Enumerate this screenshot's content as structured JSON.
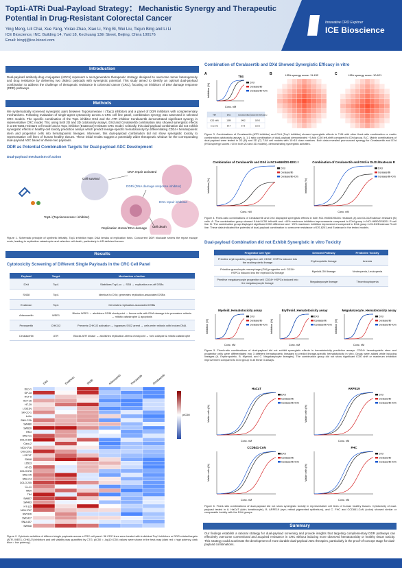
{
  "header": {
    "title": "Top1i-ATRi Dual-Payload Strategy： Mechanistic Synergy and Therapeutic Potential in Drug-Resistant Colorectal Cancer",
    "authors": "Ying Meng, Lili Chai, Xue Yang, Yixiao Zhao, Xiao Li, Ying Bi, Wei Liu, Tiejun Bing and Li Li",
    "affiliation": "ICE Bioscience, INC. Building 14, Yard 18, Kechuang 13th Street, Beijing, China 100176",
    "email": "Email: bingtj@ice-biosci.com",
    "logo_tag": "Innovative CRO Explorer",
    "logo_name": "ICE Bioscience"
  },
  "introduction": {
    "heading": "Introduction",
    "text": "Dual-payload antibody-drug conjugates (ADCs) represent a next-generation therapeutic strategy designed to overcome tumor heterogeneity and drug resistance by delivering two distinct payloads with synergistic potential. This study aimed to identify an optimal dual-payload combination to address the challenge of therapeutic resistance in colorectal cancer (CRC), focusing on inhibitors of DNA damage response (DDR) pathways."
  },
  "methods": {
    "heading": "Methods",
    "text": "We systematically screened synergistic pairs between Topoisomerase I (Top1) inhibitors and a panel of DDR inhibitors with complementary mechanisms. Following evaluation of single-agent cytotoxicity across a CRC cell line panel, combination synergy was assessed in selected CRC models. The specific combination of the Top1 inhibitor DXd and the ATR inhibitor Ceralasertib demonstrated significant synergy in representative CRC model, T84, using both 2D and 3D cytotoxicity assays. DXd and Ceralasertib combination also showed synergistic effects in a DS-8201-resistant cell model and a Top1 inhibitor (Exatecan)-resistant CRC model. Critically, this dual-payload combination did not exhibit synergistic effects in healthy-cell toxicity prediction assays which predict lineage-specific hematotoxicity by differentiating CD34+ hematopoietic stem and progenitor cells into hematopoietic lineages. Moreover, this dual-payload combination did not show synergistic toxicity to representative cell lines of human healthy tissues. These initial results suggest a potentially wider therapeutic window for the corresponding dual-payload ADC based on these two payloads."
  },
  "ddr": {
    "heading": "DDR as Potential Combination Targets for Dual-payload ADC Development",
    "figure_title": "Dual-payload mechanism of action",
    "labels": [
      "Cell survival",
      "DNA repair activated",
      "DDRi (DNA damage response inhibitor)",
      "DNA repair inhibited",
      "Cell death",
      "Top1i (Topoisomerase I inhibitor)",
      "Replication stress/ DNA damage"
    ],
    "caption": "Figure 1. Schematic principle of synthetic lethality. Top1 inhibition traps DNA breaks at replication forks. Concurrent DDR blockade severs the repair escape route, leading to replication catastrophe and selective cell death, particularly in HR-deficient tumors."
  },
  "results": {
    "heading": "Results",
    "subheading": "Cytotoxicity Screening of Different Single Payloads in the CRC Cell Panel",
    "table": {
      "columns": [
        "Payload",
        "Target",
        "Mechanism of action"
      ],
      "rows": [
        [
          "DXd",
          "Top1",
          "Stabilizes Top1-cc → SSB → replication-run-off DSBs"
        ],
        [
          "SN38",
          "Top1",
          "Identical to DXd; generates replication-associated DSBs"
        ],
        [
          "Exatecan",
          "Top1",
          "Generates replication-associated DSBs"
        ],
        [
          "Adavosertib",
          "WEE1",
          "Blocks WEE1 → abolishes G2/M checkpoint → forces cells with DNA damage into premature mitosis → mitotic catastrophe & apoptosis"
        ],
        [
          "Prexasertib",
          "CHK1/2",
          "Prevents CHK1/2 activation → bypasses S/G2 arrest → cells enter mitosis with broken DNA"
        ],
        [
          "Ceralasertib",
          "ATR",
          "Blocks ATR kinase → abolishes replication-stress checkpoint → fork collapse & mitotic catastrophe"
        ]
      ]
    },
    "heatmap": {
      "columns": [
        "DXd",
        "Exatecan",
        "SN38",
        "Adavosertib",
        "Prexasertib",
        "Ceralasertib"
      ],
      "rows": [
        "DLD-1",
        "GP-2d",
        "HCT-8",
        "HCT-15",
        "HT-29",
        "LS411N",
        "SK-CO-1",
        "LoVo",
        "SNU-C2A",
        "SW480",
        "SW620",
        "RKO",
        "SNU-C1",
        "COLO 320",
        "Caco-2",
        "NCI-H716",
        "COLO201",
        "LS174T",
        "SW48",
        "LS513",
        "HT-55",
        "COLO 678",
        "SNU-C5",
        "SNU-C4",
        "COLO 205",
        "CL-11",
        "WiDr",
        "T84",
        "SW837",
        "SW403",
        "HT-115",
        "NCI-H747",
        "SW1116",
        "SW1417",
        "SNU-407",
        "SW948"
      ],
      "legend_title": "pIC50"
    },
    "caption": "Figure 2. Cytotoxic activities of different single payloads across a CRC cell panel. 36 CRC lines were treated with individual Top1 inhibitors or DDR-related targets (ATR, WEE1, CHK1/2) inhibitors and cell viability was quantified by CTG; pIC50 = -log10 IC50; values were shown in the heat-map (dark red = high potency, dark blue = low potency)."
  },
  "combination": {
    "heading": "Combination of Ceralasertib and DXd Showed Synergistic Efficacy in vitro",
    "panel_letters": [
      "A",
      "B",
      "C"
    ],
    "panel_a_title": "T84",
    "mini_table": [
      [
        "T84",
        "DXd",
        "Ceralasertib",
        "Ceralasertib+DXd(1:1)"
      ],
      [
        "IC50 (nM)",
        "1389",
        "5402",
        "189.0"
      ],
      [
        "Imax (%)",
        "99.4",
        "87.8",
        "100.0"
      ]
    ],
    "panel_b_title": "HSA synergy score: 11.432",
    "panel_c_title": "HSA synergy score: 10.621",
    "caption1": "Figure 3. Combinations of Ceralasertib (ATR inhibitor) and DXd (Top1 inhibitor) showed synergistic effects in T-84 with other fixed-ratio combination or matrix combination cytotoxicity assays. A. 1:1 ratio combination of dual-payload demonstrated ~5-fold IC50 left-shift compared to DXd group. B-C. Matrix combinations of dual-payload were tested in 2D (B) and 3D (C) T-84 cell models with 10×10 dose matrices. Both data revealed pronounced synergy for Ceralasertib and DXd (HSA synergy scores >10 in both 2D and 3D models), demonstrating synergistic activities.",
    "chart_titles": [
      "Combination of Ceralasertib and DXd in NCI-H650/DS-8201 R",
      "Combination of Ceralasertib and DXd in DLD1/Exatecan R"
    ],
    "caption2": "Figure 4. Fixed-ratio combinations of Ceralasertib and DXd displayed synergistic effects in both NCI-H650/DS8201 resistant (A) and DLD1/Exatecan resistant (B) cells. A. The combination group showed 5-fold IC50 left-shift and ~40% maximum inhibition improvements compared to DXd group in NCI-H650/DS8201 R cell line. B. The combination group displayed significant IC50 difference and ~20% maximum inhibition improvement compared to DXd group in DLD1/Exatecan R cell line. These data indicated the potential of dual-payload combination to overcome resistance of DS-8201 and Exatecan in the tested models."
  },
  "legend": [
    {
      "name": "DXd",
      "color": "#222222"
    },
    {
      "name": "Ceralasertib",
      "color": "#d62728"
    },
    {
      "name": "Ceralasertib+DXd (1:1)",
      "color": "#1f5bd1"
    }
  ],
  "axes": {
    "x": "Conc. nM",
    "y_inhibition": "Inhibition (%)",
    "y_viable": "Viable cells (%)"
  },
  "hematotoxicity": {
    "heading": "Dual-payload Combination did not Exhibit Synergistic in vitro Toxicity",
    "table": {
      "columns": [
        "Progenitor Cell Type",
        "Detected Pathway",
        "Predictive Toxicity"
      ],
      "rows": [
        [
          "Primitive erythropoietic progenitor cell: CD34+ HSPCs induced into the erythropoietic lineage",
          "Erythropoietic lineage",
          "Anemia"
        ],
        [
          "Primitive granulocyte-macrophage (GM) progenitor cell: CD34+ HSPCs induced into the myeloid GM lineage",
          "Myeloid-GM lineage",
          "Neutropenia, Leukopenia"
        ],
        [
          "Primitive megakaryocyte progenitor cell: CD34+ HSPCs induced into the megakaryocyte lineage",
          "Megakaryocyte lineage",
          "Thrombocytopenia"
        ]
      ]
    },
    "assay_titles": [
      "Myeloid_Hematotoxicity assay",
      "Erythroid_Hematotoxicity assay",
      "Megakaryocyte_Hematotoxicity assay"
    ],
    "caption1": "Figure 5. Fixed-ratio combinations of dual-payload did not exhibit synergistic effects in hematotoxicity prediction assays. CD34+ hematopoietic stem and progenitor cells were differentiated into 3 different hematopoietic lineages to predict lineage-specific hematotoxicity in vitro. Drugs were added while inducing lineages (A. Erythropoietic, B. Myeloid, and C. Megakaryocyte lineages). The combination group did not show significant IC50 shift or maximum inhibition improvement compared to DXd group in all these 3 assays.",
    "cell_titles": [
      "HaCaT",
      "ARPE19",
      "CCD841-CoN",
      "FHC"
    ],
    "caption2": "Figure 6. Fixed-ratio combinations of dual-payload did not show synergistic toxicity in representative cell lines of human healthy tissues. Cytotoxicity of dual-payload tested in A. HaCaT (skin; keratinocyte), B. ARPE19 (eye; retinal pigmented epithelium), and C. FHC and CCD841-CoN (colon) showed similar or comparable toxicity with the DXd groups."
  },
  "summary": {
    "heading": "Summary",
    "text": "Our findings establish a rational strategy for dual-payload screening and provide insights that targeting complementary DDR pathways can effectively overcome conventional and acquired resistance in CRC without inducing more observed hematotoxicity or healthy tissue toxicity. This strategy could accelerate the development of more durable dual-payload ADC therapies, particularly in the proof-of-concept stage for dual-payload combinations."
  }
}
